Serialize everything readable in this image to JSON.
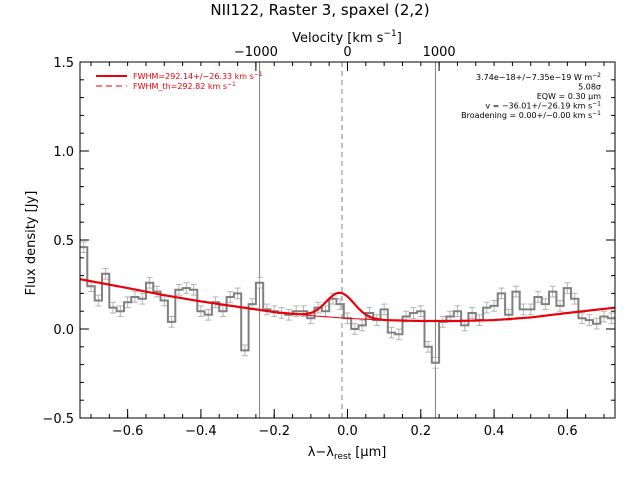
{
  "chart_data": {
    "type": "line",
    "title": "NII122, Raster 3, spaxel (2,2)",
    "xlabel_main": "λ−λ",
    "xlabel_sub": "rest",
    "xlabel_unit": "[μm]",
    "top_xlabel_main": "Velocity [km s",
    "top_xlabel_sup": "−1",
    "top_xlabel_close": "]",
    "ylabel": "Flux density [Jy]",
    "xlim": [
      -0.73,
      0.73
    ],
    "ylim": [
      -0.5,
      1.5
    ],
    "x_ticks": [
      -0.6,
      -0.4,
      -0.2,
      0.0,
      0.2,
      0.4,
      0.6
    ],
    "x_tick_labels": [
      "−0.6",
      "−0.4",
      "−0.2",
      "0.0",
      "0.2",
      "0.4",
      "0.6"
    ],
    "y_ticks": [
      -0.5,
      0.0,
      0.5,
      1.0,
      1.5
    ],
    "y_tick_labels": [
      "−0.5",
      "0.0",
      "0.5",
      "1.0",
      "1.5"
    ],
    "top_ticks_velocity": [
      -1000,
      0,
      1000
    ],
    "top_tick_labels": [
      "−1000",
      "0",
      "1000"
    ],
    "velocity_per_micron": 4000,
    "vertical_lines": [
      -0.24,
      0.24
    ],
    "rest_line": -0.015,
    "spectrum": {
      "x": [
        -0.72,
        -0.7,
        -0.68,
        -0.66,
        -0.64,
        -0.62,
        -0.6,
        -0.58,
        -0.56,
        -0.54,
        -0.52,
        -0.5,
        -0.48,
        -0.46,
        -0.44,
        -0.42,
        -0.4,
        -0.38,
        -0.36,
        -0.34,
        -0.32,
        -0.3,
        -0.28,
        -0.26,
        -0.24,
        -0.22,
        -0.2,
        -0.18,
        -0.16,
        -0.14,
        -0.12,
        -0.1,
        -0.08,
        -0.06,
        -0.04,
        -0.02,
        0.0,
        0.02,
        0.04,
        0.06,
        0.08,
        0.1,
        0.12,
        0.14,
        0.16,
        0.18,
        0.2,
        0.22,
        0.24,
        0.26,
        0.28,
        0.3,
        0.32,
        0.34,
        0.36,
        0.38,
        0.4,
        0.42,
        0.44,
        0.46,
        0.48,
        0.5,
        0.52,
        0.54,
        0.56,
        0.58,
        0.6,
        0.62,
        0.64,
        0.66,
        0.68,
        0.7,
        0.72
      ],
      "y": [
        0.46,
        0.24,
        0.16,
        0.31,
        0.12,
        0.1,
        0.15,
        0.18,
        0.17,
        0.26,
        0.21,
        0.16,
        0.04,
        0.22,
        0.23,
        0.22,
        0.1,
        0.08,
        0.15,
        0.1,
        0.18,
        0.2,
        -0.12,
        0.14,
        0.26,
        0.11,
        0.1,
        0.09,
        0.08,
        0.1,
        0.1,
        0.06,
        0.12,
        0.1,
        0.17,
        0.14,
        0.06,
        0.0,
        0.02,
        0.09,
        0.05,
        0.11,
        -0.02,
        -0.03,
        0.07,
        0.09,
        0.1,
        -0.1,
        -0.19,
        0.04,
        0.07,
        0.1,
        0.02,
        0.09,
        0.05,
        0.12,
        0.13,
        0.2,
        0.08,
        0.21,
        0.11,
        0.11,
        0.18,
        0.14,
        0.21,
        0.13,
        0.23,
        0.17,
        0.06,
        0.05,
        0.03,
        0.07,
        0.06
      ],
      "error": 0.03
    },
    "continuum_fit": {
      "x": [
        -0.73,
        -0.6,
        -0.5,
        -0.4,
        -0.3,
        -0.2,
        -0.1,
        0.0,
        0.1,
        0.2,
        0.3,
        0.4,
        0.5,
        0.6,
        0.73
      ],
      "y": [
        0.28,
        0.23,
        0.19,
        0.155,
        0.125,
        0.095,
        0.075,
        0.06,
        0.05,
        0.045,
        0.045,
        0.05,
        0.065,
        0.09,
        0.12
      ]
    },
    "gaussian": {
      "center": -0.02,
      "amplitude": 0.14,
      "sigma": 0.038,
      "range": [
        -0.12,
        0.12
      ]
    },
    "legend": [
      {
        "label": "FWHM=292.14+/−26.33 km s",
        "sup": "−1",
        "style": "solid",
        "color": "#e8000b"
      },
      {
        "label": "FWHM_th=292.82 km s",
        "sup": "−1",
        "style": "dashed",
        "color": "#e8000b"
      }
    ],
    "annotations": [
      {
        "text": "3.74e−18+/−7.35e−19 W m",
        "sup": "−2"
      },
      {
        "text": "5.08σ",
        "sup": ""
      },
      {
        "text": "EQW = 0.30 μm",
        "sup": ""
      },
      {
        "text": "v = −36.01+/−26.19 km s",
        "sup": "−1"
      },
      {
        "text": "Broadening = 0.00+/−0.00 km s",
        "sup": "−1"
      }
    ],
    "colors": {
      "spectrum": "#808080",
      "errorbar": "#b4b4b4",
      "fit": "#e8000b",
      "vline": "#808080",
      "axis": "#000000"
    }
  }
}
